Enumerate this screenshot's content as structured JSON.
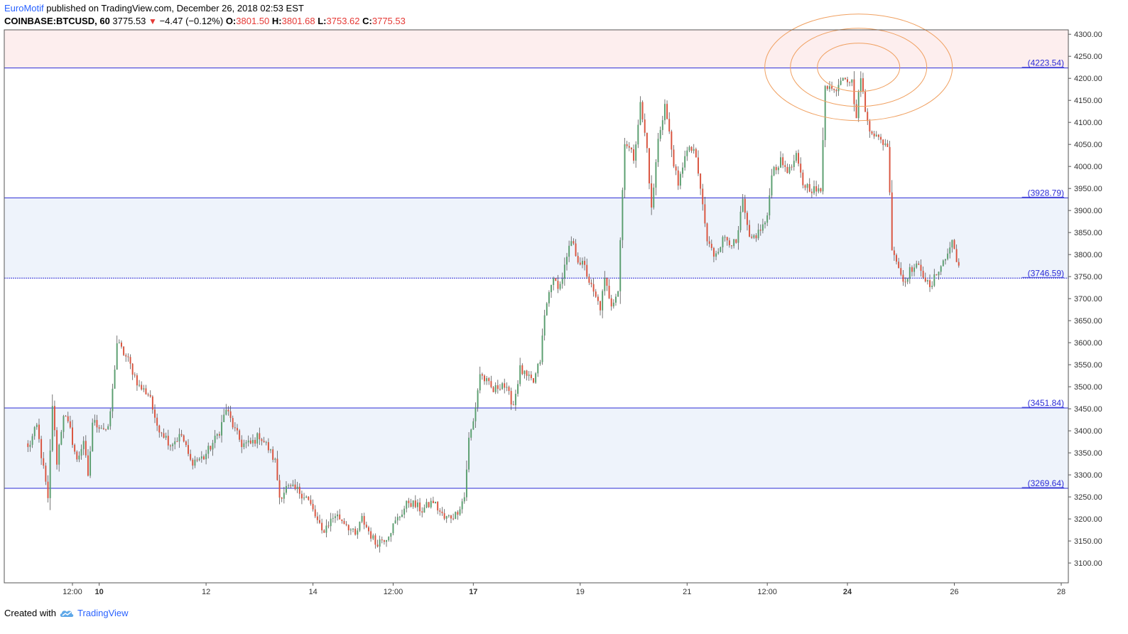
{
  "header": {
    "author": "EuroMotif",
    "published_text": "published on TradingView.com, December 26, 2018 02:53 EST",
    "symbol": "COINBASE:BTCUSD, 60",
    "last": "3775.53",
    "change_arrow": "▼",
    "change": "−4.47 (−0.12%)",
    "o_label": "O:",
    "o_value": "3801.50",
    "h_label": "H:",
    "h_value": "3801.68",
    "l_label": "L:",
    "l_value": "3753.62",
    "c_label": "C:",
    "c_value": "3775.53"
  },
  "footer": {
    "created_with": "Created with",
    "brand": "TradingView",
    "logo_icon": "tradingview-cloud-icon"
  },
  "colors": {
    "up": "#5a9e6f",
    "down": "#d9533e",
    "level_line": "#2b2bd6",
    "zone_blue": "#eef3fb",
    "zone_red": "#fdeeee",
    "circles": "#f0a060"
  },
  "chart_data": {
    "type": "candlestick",
    "title": "",
    "xlabel": "",
    "ylabel": "",
    "ylim": [
      3055,
      4310
    ],
    "y_ticks": [
      3100,
      3150,
      3200,
      3250,
      3300,
      3350,
      3400,
      3450,
      3500,
      3550,
      3600,
      3650,
      3700,
      3750,
      3800,
      3850,
      3900,
      3950,
      4000,
      4050,
      4100,
      4150,
      4200,
      4250,
      4300
    ],
    "y_tick_labels": [
      "3100.00",
      "3150.00",
      "3200.00",
      "3250.00",
      "3300.00",
      "3350.00",
      "3400.00",
      "3450.00",
      "3500.00",
      "3550.00",
      "3600.00",
      "3650.00",
      "3700.00",
      "3750.00",
      "3800.00",
      "3850.00",
      "3900.00",
      "3950.00",
      "4000.00",
      "4050.00",
      "4100.00",
      "4150.00",
      "4200.00",
      "4250.00",
      "4300.00"
    ],
    "x_ticks": [
      {
        "label": "12:00",
        "date": "2018-12-09 12:00",
        "bold": false
      },
      {
        "label": "10",
        "date": "2018-12-10 00:00",
        "bold": true
      },
      {
        "label": "12",
        "date": "2018-12-12 00:00",
        "bold": false
      },
      {
        "label": "14",
        "date": "2018-12-14 00:00",
        "bold": false
      },
      {
        "label": "12:00",
        "date": "2018-12-15 12:00",
        "bold": false
      },
      {
        "label": "17",
        "date": "2018-12-17 00:00",
        "bold": true
      },
      {
        "label": "19",
        "date": "2018-12-19 00:00",
        "bold": false
      },
      {
        "label": "21",
        "date": "2018-12-21 00:00",
        "bold": false
      },
      {
        "label": "12:00",
        "date": "2018-12-22 12:00",
        "bold": false
      },
      {
        "label": "24",
        "date": "2018-12-24 00:00",
        "bold": true
      },
      {
        "label": "26",
        "date": "2018-12-26 00:00",
        "bold": false
      },
      {
        "label": "28",
        "date": "2018-12-28 00:00",
        "bold": false
      }
    ],
    "levels": [
      {
        "value": 4223.54,
        "label": "(4223.54)",
        "style": "solid"
      },
      {
        "value": 3928.79,
        "label": "(3928.79)",
        "style": "solid"
      },
      {
        "value": 3746.59,
        "label": "(3746.59)",
        "style": "dotted"
      },
      {
        "value": 3451.84,
        "label": "(3451.84)",
        "style": "solid"
      },
      {
        "value": 3269.64,
        "label": "(3269.64)",
        "style": "solid"
      }
    ],
    "zones": [
      {
        "from": 4223.54,
        "to": 4310,
        "color": "zone_red"
      },
      {
        "from": 3746.59,
        "to": 3928.79,
        "color": "zone_blue"
      },
      {
        "from": 3269.64,
        "to": 3451.84,
        "color": "zone_blue"
      }
    ],
    "circles": {
      "center_date": "2018-12-24 05:00",
      "center_value": 4225,
      "rings": 3
    },
    "keypoints": [
      [
        "2018-12-08 16:00",
        3360
      ],
      [
        "2018-12-08 20:00",
        3410
      ],
      [
        "2018-12-09 00:00",
        3280
      ],
      [
        "2018-12-09 01:00",
        3240
      ],
      [
        "2018-12-09 03:00",
        3460
      ],
      [
        "2018-12-09 05:00",
        3330
      ],
      [
        "2018-12-09 08:00",
        3440
      ],
      [
        "2018-12-09 11:00",
        3400
      ],
      [
        "2018-12-09 14:00",
        3330
      ],
      [
        "2018-12-09 17:00",
        3380
      ],
      [
        "2018-12-09 19:00",
        3290
      ],
      [
        "2018-12-09 21:00",
        3420
      ],
      [
        "2018-12-10 01:00",
        3410
      ],
      [
        "2018-12-10 04:00",
        3400
      ],
      [
        "2018-12-10 06:00",
        3490
      ],
      [
        "2018-12-10 08:00",
        3600
      ],
      [
        "2018-12-10 13:00",
        3560
      ],
      [
        "2018-12-10 18:00",
        3500
      ],
      [
        "2018-12-10 23:00",
        3480
      ],
      [
        "2018-12-11 01:00",
        3420
      ],
      [
        "2018-12-11 04:00",
        3400
      ],
      [
        "2018-12-11 08:00",
        3370
      ],
      [
        "2018-12-11 13:00",
        3390
      ],
      [
        "2018-12-11 17:00",
        3330
      ],
      [
        "2018-12-11 23:00",
        3340
      ],
      [
        "2018-12-12 04:00",
        3380
      ],
      [
        "2018-12-12 06:00",
        3400
      ],
      [
        "2018-12-12 09:00",
        3450
      ],
      [
        "2018-12-12 13:00",
        3400
      ],
      [
        "2018-12-12 16:00",
        3370
      ],
      [
        "2018-12-12 20:00",
        3370
      ],
      [
        "2018-12-13 00:00",
        3390
      ],
      [
        "2018-12-13 04:00",
        3360
      ],
      [
        "2018-12-13 07:00",
        3330
      ],
      [
        "2018-12-13 09:00",
        3250
      ],
      [
        "2018-12-13 12:00",
        3270
      ],
      [
        "2018-12-13 17:00",
        3265
      ],
      [
        "2018-12-13 21:00",
        3250
      ],
      [
        "2018-12-13 23:00",
        3230
      ],
      [
        "2018-12-14 04:00",
        3170
      ],
      [
        "2018-12-14 10:00",
        3210
      ],
      [
        "2018-12-14 15:00",
        3190
      ],
      [
        "2018-12-14 19:00",
        3160
      ],
      [
        "2018-12-14 22:00",
        3200
      ],
      [
        "2018-12-15 04:00",
        3145
      ],
      [
        "2018-12-15 09:00",
        3160
      ],
      [
        "2018-12-15 14:00",
        3200
      ],
      [
        "2018-12-15 19:00",
        3240
      ],
      [
        "2018-12-16 01:00",
        3220
      ],
      [
        "2018-12-16 06:00",
        3240
      ],
      [
        "2018-12-16 11:00",
        3200
      ],
      [
        "2018-12-16 16:00",
        3210
      ],
      [
        "2018-12-16 20:00",
        3250
      ],
      [
        "2018-12-16 22:00",
        3380
      ],
      [
        "2018-12-17 00:00",
        3420
      ],
      [
        "2018-12-17 03:00",
        3530
      ],
      [
        "2018-12-17 06:00",
        3510
      ],
      [
        "2018-12-17 09:00",
        3490
      ],
      [
        "2018-12-17 13:00",
        3510
      ],
      [
        "2018-12-17 18:00",
        3460
      ],
      [
        "2018-12-17 21:00",
        3540
      ],
      [
        "2018-12-18 00:00",
        3520
      ],
      [
        "2018-12-18 03:00",
        3510
      ],
      [
        "2018-12-18 06:00",
        3560
      ],
      [
        "2018-12-18 08:00",
        3660
      ],
      [
        "2018-12-18 11:00",
        3740
      ],
      [
        "2018-12-18 15:00",
        3730
      ],
      [
        "2018-12-18 20:00",
        3830
      ],
      [
        "2018-12-18 23:00",
        3790
      ],
      [
        "2018-12-19 02:00",
        3770
      ],
      [
        "2018-12-19 06:00",
        3710
      ],
      [
        "2018-12-19 09:00",
        3680
      ],
      [
        "2018-12-19 11:00",
        3740
      ],
      [
        "2018-12-19 14:00",
        3690
      ],
      [
        "2018-12-19 17:00",
        3720
      ],
      [
        "2018-12-19 20:00",
        4060
      ],
      [
        "2018-12-20 00:00",
        4020
      ],
      [
        "2018-12-20 03:00",
        4140
      ],
      [
        "2018-12-20 06:00",
        4040
      ],
      [
        "2018-12-20 08:00",
        3900
      ],
      [
        "2018-12-20 11:00",
        4060
      ],
      [
        "2018-12-20 14:00",
        4140
      ],
      [
        "2018-12-20 17:00",
        4040
      ],
      [
        "2018-12-20 20:00",
        3950
      ],
      [
        "2018-12-20 23:00",
        4030
      ],
      [
        "2018-12-21 03:00",
        4040
      ],
      [
        "2018-12-21 06:00",
        3950
      ],
      [
        "2018-12-21 09:00",
        3830
      ],
      [
        "2018-12-21 12:00",
        3800
      ],
      [
        "2018-12-21 17:00",
        3840
      ],
      [
        "2018-12-21 22:00",
        3820
      ],
      [
        "2018-12-22 01:00",
        3920
      ],
      [
        "2018-12-22 04:00",
        3830
      ],
      [
        "2018-12-22 08:00",
        3850
      ],
      [
        "2018-12-22 12:00",
        3880
      ],
      [
        "2018-12-22 14:00",
        3990
      ],
      [
        "2018-12-22 18:00",
        4010
      ],
      [
        "2018-12-22 22:00",
        3990
      ],
      [
        "2018-12-23 01:00",
        4020
      ],
      [
        "2018-12-23 04:00",
        3960
      ],
      [
        "2018-12-23 08:00",
        3950
      ],
      [
        "2018-12-23 12:00",
        3940
      ],
      [
        "2018-12-23 14:00",
        4190
      ],
      [
        "2018-12-23 18:00",
        4170
      ],
      [
        "2018-12-23 22:00",
        4210
      ],
      [
        "2018-12-24 02:00",
        4190
      ],
      [
        "2018-12-24 04:00",
        4110
      ],
      [
        "2018-12-24 06:00",
        4210
      ],
      [
        "2018-12-24 08:00",
        4120
      ],
      [
        "2018-12-24 10:00",
        4090
      ],
      [
        "2018-12-24 14:00",
        4060
      ],
      [
        "2018-12-24 18:00",
        4050
      ],
      [
        "2018-12-24 20:00",
        3820
      ],
      [
        "2018-12-25 01:00",
        3740
      ],
      [
        "2018-12-25 05:00",
        3770
      ],
      [
        "2018-12-25 09:00",
        3770
      ],
      [
        "2018-12-25 13:00",
        3720
      ],
      [
        "2018-12-25 17:00",
        3770
      ],
      [
        "2018-12-25 20:00",
        3790
      ],
      [
        "2018-12-25 23:00",
        3830
      ],
      [
        "2018-12-26 02:00",
        3775
      ]
    ]
  }
}
